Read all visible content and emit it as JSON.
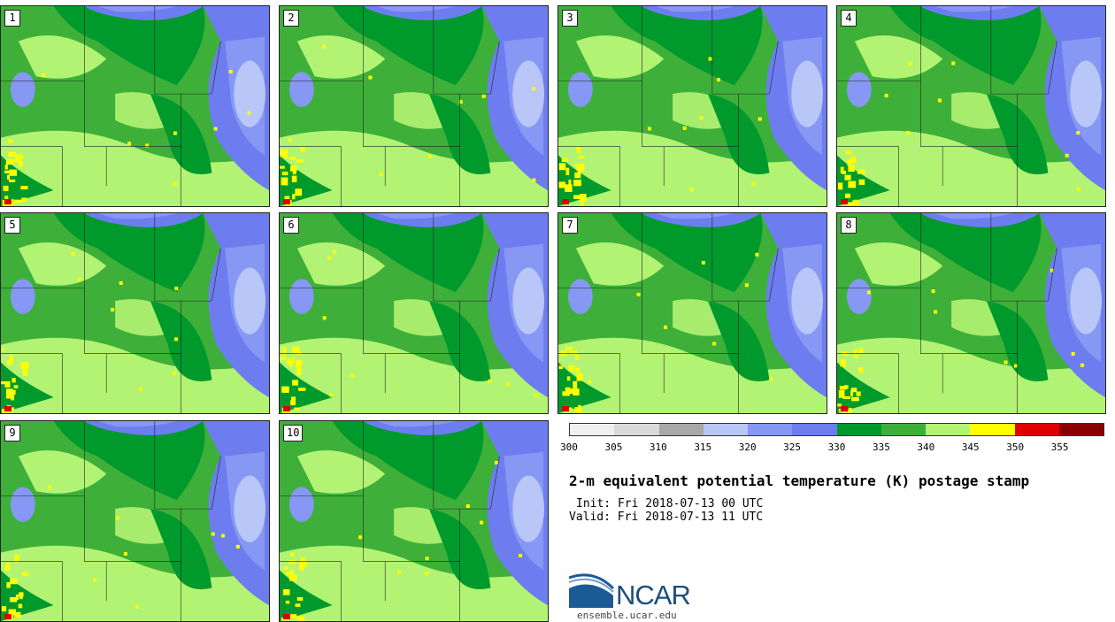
{
  "panels": [
    {
      "label": "1"
    },
    {
      "label": "2"
    },
    {
      "label": "3"
    },
    {
      "label": "4"
    },
    {
      "label": "5"
    },
    {
      "label": "6"
    },
    {
      "label": "7"
    },
    {
      "label": "8"
    },
    {
      "label": "9"
    },
    {
      "label": "10"
    }
  ],
  "colorbar": {
    "colors": [
      "#f0f0f0",
      "#d9d9d9",
      "#a8a8a8",
      "#b8c6f8",
      "#8797f4",
      "#6d7df0",
      "#009a2c",
      "#3eb039",
      "#b2f373",
      "#ffff00",
      "#e00000",
      "#8a0000"
    ],
    "ticks": [
      "300",
      "305",
      "310",
      "315",
      "320",
      "325",
      "330",
      "335",
      "340",
      "345",
      "350",
      "355"
    ]
  },
  "title": "2-m equivalent potential temperature (K) postage stamp",
  "init": "Init: Fri 2018-07-13 00 UTC",
  "valid": "Valid: Fri 2018-07-13 11 UTC",
  "logo": {
    "text": "NCAR",
    "site": "ensemble.ucar.edu"
  }
}
